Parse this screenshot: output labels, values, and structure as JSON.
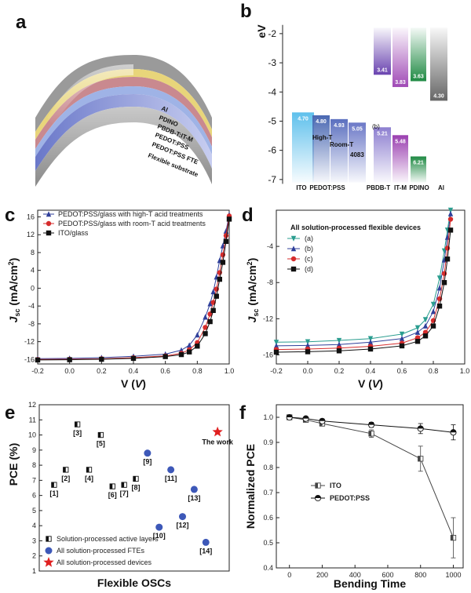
{
  "panel_labels": {
    "a": "a",
    "b": "b",
    "c": "c",
    "d": "d",
    "e": "e",
    "f": "f"
  },
  "panel_a": {
    "layers": [
      "Al",
      "PDINO",
      "PBDB-T:IT-M",
      "PEDOT:PSS",
      "PEDOT:PSS FTE",
      "Flexible substrate"
    ]
  },
  "chart_data": [
    {
      "panel": "b",
      "type": "bar",
      "ylabel": "eV",
      "yticks": [
        "-2",
        "-3",
        "-4",
        "-5",
        "-6",
        "-7"
      ],
      "ylim": [
        -7.3,
        -1.6
      ],
      "levels": [
        {
          "material": "ITO",
          "top": -4.7,
          "top_label": "4.70",
          "color": "#5fc0ec"
        },
        {
          "material": "PEDOT:PSS",
          "top": -4.8,
          "top_label": "4.80",
          "color": "#4a68b2"
        },
        {
          "material": "PEDOT:PSS",
          "top": -4.93,
          "top_label": "4.93",
          "color": "#5b6fbf"
        },
        {
          "material": "PEDOT:PSS",
          "top": -5.05,
          "top_label": "5.05",
          "color": "#6c79c7"
        },
        {
          "material": "PBDB-T",
          "top": -5.21,
          "top_label": "5.21",
          "color": "#8d7fd0"
        },
        {
          "material": "PBDB-T",
          "top": -3.41,
          "top_label": "3.41",
          "color": "#6a44b0"
        },
        {
          "material": "IT-M",
          "top": -5.48,
          "top_label": "5.48",
          "color": "#9a3fb0"
        },
        {
          "material": "IT-M",
          "top": -3.83,
          "top_label": "3.83",
          "color": "#a04ab6"
        },
        {
          "material": "PDINO",
          "top": -6.21,
          "top_label": "6.21",
          "color": "#1f8a43"
        },
        {
          "material": "PDINO",
          "top": -3.63,
          "top_label": "3.63",
          "color": "#1f8a43"
        },
        {
          "material": "Al",
          "top": -4.3,
          "top_label": "4.30",
          "color": "#666666"
        }
      ],
      "material_labels": [
        "ITO",
        "PEDOT:PSS",
        "PBDB-T",
        "IT-M",
        "PDINO",
        "Al"
      ],
      "annotations": [
        "High-T",
        "Room-T",
        "4083",
        "(b)"
      ]
    },
    {
      "panel": "c",
      "type": "line",
      "xlabel": "V (V)",
      "ylabel": "Jsc (mA/cm²)",
      "xlim": [
        -0.2,
        1.0
      ],
      "ylim": [
        -17,
        17.5
      ],
      "xticks": [
        "-0.2",
        "0.0",
        "0.2",
        "0.4",
        "0.6",
        "0.8",
        "1.0"
      ],
      "yticks": [
        "16",
        "12",
        "8",
        "4",
        "0",
        "-4",
        "-8",
        "-12",
        "-16"
      ],
      "series": [
        {
          "name": "PEDOT:PSS/glass with high-T acid treatments",
          "color": "#2f3f9a",
          "marker": "triangle",
          "x": [
            -0.2,
            0.0,
            0.2,
            0.4,
            0.6,
            0.7,
            0.75,
            0.8,
            0.85,
            0.88,
            0.9,
            0.92,
            0.94,
            0.96,
            0.98,
            1.0
          ],
          "y": [
            -15.8,
            -15.75,
            -15.6,
            -15.3,
            -14.8,
            -13.9,
            -12.8,
            -10.5,
            -6.5,
            -3.5,
            -0.8,
            2.5,
            6.2,
            9.5,
            12.8,
            16.5
          ]
        },
        {
          "name": "PEDOT:PSS/glass with room-T acid treatments",
          "color": "#d62c2c",
          "marker": "circle",
          "x": [
            -0.2,
            0.0,
            0.2,
            0.4,
            0.6,
            0.7,
            0.75,
            0.8,
            0.85,
            0.88,
            0.9,
            0.92,
            0.94,
            0.96,
            0.98,
            1.0
          ],
          "y": [
            -16.0,
            -15.95,
            -15.85,
            -15.6,
            -15.2,
            -14.6,
            -13.8,
            -12.2,
            -8.8,
            -5.8,
            -3.2,
            -0.2,
            3.5,
            7.5,
            11.8,
            16.2
          ]
        },
        {
          "name": "ITO/glass",
          "color": "#111111",
          "marker": "square",
          "x": [
            -0.2,
            0.0,
            0.2,
            0.4,
            0.6,
            0.7,
            0.75,
            0.8,
            0.85,
            0.88,
            0.9,
            0.92,
            0.94,
            0.96,
            0.98,
            1.0
          ],
          "y": [
            -16.1,
            -16.05,
            -15.95,
            -15.75,
            -15.35,
            -14.9,
            -14.3,
            -13.0,
            -10.2,
            -7.5,
            -5.0,
            -1.8,
            2.0,
            5.8,
            10.5,
            15.5
          ]
        }
      ]
    },
    {
      "panel": "d",
      "type": "line",
      "xlabel": "V (V)",
      "ylabel": "Jsc (mA/cm²)",
      "xlim": [
        -0.2,
        1.0
      ],
      "ylim": [
        -17,
        0
      ],
      "xticks": [
        "-0.2",
        "0.0",
        "0.2",
        "0.4",
        "0.6",
        "0.8",
        "1.0"
      ],
      "yticks": [
        "-4",
        "-8",
        "-12",
        "-16"
      ],
      "legend_title": "All solution-processed flexible devices",
      "series": [
        {
          "name": "(a)",
          "color": "#2a9d8f",
          "marker": "triangle-down",
          "x": [
            -0.2,
            0.0,
            0.2,
            0.4,
            0.6,
            0.7,
            0.75,
            0.8,
            0.84,
            0.87,
            0.89,
            0.91
          ],
          "y": [
            -14.6,
            -14.55,
            -14.4,
            -14.2,
            -13.7,
            -13.0,
            -12.1,
            -10.4,
            -7.5,
            -4.5,
            -2.2,
            0.0
          ]
        },
        {
          "name": "(b)",
          "color": "#2f3f9a",
          "marker": "triangle",
          "x": [
            -0.2,
            0.0,
            0.2,
            0.4,
            0.6,
            0.7,
            0.75,
            0.8,
            0.84,
            0.87,
            0.89,
            0.91
          ],
          "y": [
            -15.0,
            -14.95,
            -14.85,
            -14.6,
            -14.2,
            -13.5,
            -12.8,
            -11.2,
            -8.6,
            -5.5,
            -3.0,
            -0.4
          ]
        },
        {
          "name": "(c)",
          "color": "#d62c2c",
          "marker": "circle",
          "x": [
            -0.2,
            0.0,
            0.2,
            0.4,
            0.6,
            0.7,
            0.75,
            0.8,
            0.84,
            0.87,
            0.89,
            0.91
          ],
          "y": [
            -15.4,
            -15.35,
            -15.25,
            -15.05,
            -14.7,
            -14.1,
            -13.5,
            -12.2,
            -9.8,
            -7.0,
            -4.2,
            -1.0
          ]
        },
        {
          "name": "(d)",
          "color": "#111111",
          "marker": "square",
          "x": [
            -0.2,
            0.0,
            0.2,
            0.4,
            0.6,
            0.7,
            0.75,
            0.8,
            0.84,
            0.87,
            0.89,
            0.91
          ],
          "y": [
            -15.7,
            -15.65,
            -15.55,
            -15.35,
            -15.0,
            -14.5,
            -13.9,
            -12.8,
            -10.6,
            -8.0,
            -5.4,
            -2.2
          ]
        }
      ]
    },
    {
      "panel": "e",
      "type": "scatter",
      "xlabel": "Flexible OSCs",
      "ylabel": "PCE (%)",
      "ylim": [
        1,
        12
      ],
      "yticks": [
        "12",
        "11",
        "10",
        "9",
        "8",
        "7",
        "6",
        "5",
        "4",
        "3",
        "2",
        "1"
      ],
      "groups": [
        {
          "name": "Solution-processed active layers",
          "marker": "half-square",
          "color": "#111111",
          "points": [
            {
              "x": 1,
              "y": 6.7,
              "label": "[1]"
            },
            {
              "x": 2,
              "y": 7.7,
              "label": "[2]"
            },
            {
              "x": 3,
              "y": 10.7,
              "label": "[3]"
            },
            {
              "x": 4,
              "y": 7.7,
              "label": "[4]"
            },
            {
              "x": 5,
              "y": 10.0,
              "label": "[5]"
            },
            {
              "x": 6,
              "y": 6.6,
              "label": "[6]"
            },
            {
              "x": 7,
              "y": 6.7,
              "label": "[7]"
            },
            {
              "x": 8,
              "y": 7.1,
              "label": "[8]"
            }
          ]
        },
        {
          "name": "All solution-processed FTEs",
          "marker": "circle",
          "color": "#3d58b8",
          "points": [
            {
              "x": 9,
              "y": 8.8,
              "label": "[9]"
            },
            {
              "x": 10,
              "y": 3.9,
              "label": "[10]"
            },
            {
              "x": 11,
              "y": 7.7,
              "label": "[11]"
            },
            {
              "x": 12,
              "y": 4.6,
              "label": "[12]"
            },
            {
              "x": 13,
              "y": 6.4,
              "label": "[13]"
            },
            {
              "x": 14,
              "y": 2.9,
              "label": "[14]"
            }
          ]
        },
        {
          "name": "All solution-processed devices",
          "marker": "star",
          "color": "#e02020",
          "points": [
            {
              "x": 15,
              "y": 10.2,
              "label": "The work"
            }
          ]
        }
      ]
    },
    {
      "panel": "f",
      "type": "line",
      "xlabel": "Bending Time",
      "ylabel": "Normalized PCE",
      "xlim": [
        -80,
        1060
      ],
      "ylim": [
        0.4,
        1.05
      ],
      "xticks": [
        "0",
        "200",
        "400",
        "600",
        "800",
        "1000"
      ],
      "yticks": [
        "1.0",
        "0.9",
        "0.8",
        "0.7",
        "0.6",
        "0.5",
        "0.4"
      ],
      "series": [
        {
          "name": "ITO",
          "color": "#444444",
          "marker": "half-square",
          "x": [
            0,
            100,
            200,
            500,
            800,
            1000
          ],
          "y": [
            1.0,
            0.99,
            0.975,
            0.935,
            0.835,
            0.52
          ],
          "err": [
            0.005,
            0.005,
            0.01,
            0.015,
            0.05,
            0.08
          ]
        },
        {
          "name": "PEDOT:PSS",
          "color": "#111111",
          "marker": "half-circle",
          "x": [
            0,
            100,
            200,
            500,
            800,
            1000
          ],
          "y": [
            1.0,
            0.995,
            0.985,
            0.97,
            0.955,
            0.94
          ],
          "err": [
            0.005,
            0.005,
            0.008,
            0.01,
            0.02,
            0.03
          ]
        }
      ]
    }
  ]
}
